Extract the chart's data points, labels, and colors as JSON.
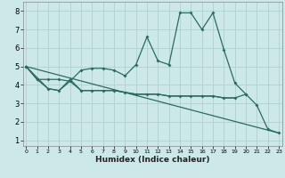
{
  "xlabel": "Humidex (Indice chaleur)",
  "x": [
    0,
    1,
    2,
    3,
    4,
    5,
    6,
    7,
    8,
    9,
    10,
    11,
    12,
    13,
    14,
    15,
    16,
    17,
    18,
    19,
    20,
    21,
    22,
    23
  ],
  "line1": [
    5.0,
    4.3,
    4.3,
    4.3,
    4.2,
    4.8,
    4.9,
    4.9,
    4.8,
    4.5,
    5.1,
    6.6,
    5.3,
    5.1,
    7.9,
    7.9,
    7.0,
    7.9,
    5.9,
    4.1,
    3.5,
    2.9,
    1.6,
    1.4
  ],
  "line2": [
    5.0,
    4.3,
    3.8,
    3.7,
    4.3,
    3.7,
    3.7,
    3.7,
    3.7,
    3.6,
    3.5,
    3.5,
    3.5,
    3.4,
    3.4,
    3.4,
    3.4,
    3.4,
    3.3,
    3.3,
    3.5,
    null,
    null,
    null
  ],
  "line3": [
    5.0,
    null,
    3.8,
    3.7,
    4.2,
    3.7,
    3.7,
    3.7,
    3.7,
    3.6,
    3.5,
    3.5,
    3.5,
    3.4,
    3.4,
    3.4,
    3.4,
    3.4,
    3.3,
    3.3,
    null,
    null,
    null,
    null
  ],
  "line4_x": [
    0,
    23
  ],
  "line4_y": [
    5.0,
    1.4
  ],
  "bg_color": "#cce8e8",
  "grid_color": "#b0d0d0",
  "line_color": "#2a6b60",
  "ylim_min": 1,
  "ylim_max": 8,
  "xlim_min": 0,
  "xlim_max": 23
}
